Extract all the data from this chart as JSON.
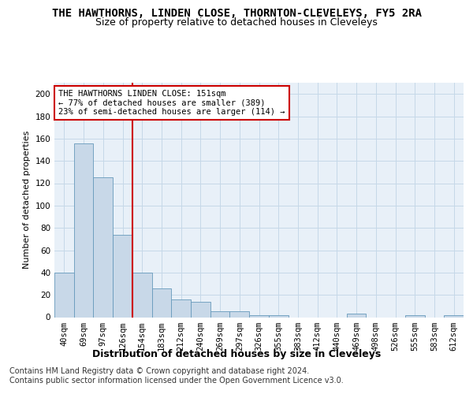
{
  "title": "THE HAWTHORNS, LINDEN CLOSE, THORNTON-CLEVELEYS, FY5 2RA",
  "subtitle": "Size of property relative to detached houses in Cleveleys",
  "xlabel": "Distribution of detached houses by size in Cleveleys",
  "ylabel": "Number of detached properties",
  "categories": [
    "40sqm",
    "69sqm",
    "97sqm",
    "126sqm",
    "154sqm",
    "183sqm",
    "212sqm",
    "240sqm",
    "269sqm",
    "297sqm",
    "326sqm",
    "355sqm",
    "383sqm",
    "412sqm",
    "440sqm",
    "469sqm",
    "498sqm",
    "526sqm",
    "555sqm",
    "583sqm",
    "612sqm"
  ],
  "values": [
    40,
    156,
    125,
    74,
    40,
    26,
    16,
    14,
    5,
    5,
    2,
    2,
    0,
    0,
    0,
    3,
    0,
    0,
    2,
    0,
    2
  ],
  "bar_color": "#c8d8e8",
  "bar_edge_color": "#6699bb",
  "property_line_index": 4,
  "property_line_color": "#cc0000",
  "annotation_line1": "THE HAWTHORNS LINDEN CLOSE: 151sqm",
  "annotation_line2": "← 77% of detached houses are smaller (389)",
  "annotation_line3": "23% of semi-detached houses are larger (114) →",
  "annotation_box_color": "#ffffff",
  "annotation_box_edge": "#cc0000",
  "ylim": [
    0,
    210
  ],
  "yticks": [
    0,
    20,
    40,
    60,
    80,
    100,
    120,
    140,
    160,
    180,
    200
  ],
  "grid_color": "#c5d8e8",
  "background_color": "#e8f0f8",
  "footer_line1": "Contains HM Land Registry data © Crown copyright and database right 2024.",
  "footer_line2": "Contains public sector information licensed under the Open Government Licence v3.0.",
  "title_fontsize": 10,
  "subtitle_fontsize": 9,
  "xlabel_fontsize": 9,
  "ylabel_fontsize": 8,
  "tick_fontsize": 7.5,
  "annotation_fontsize": 7.5,
  "footer_fontsize": 7
}
